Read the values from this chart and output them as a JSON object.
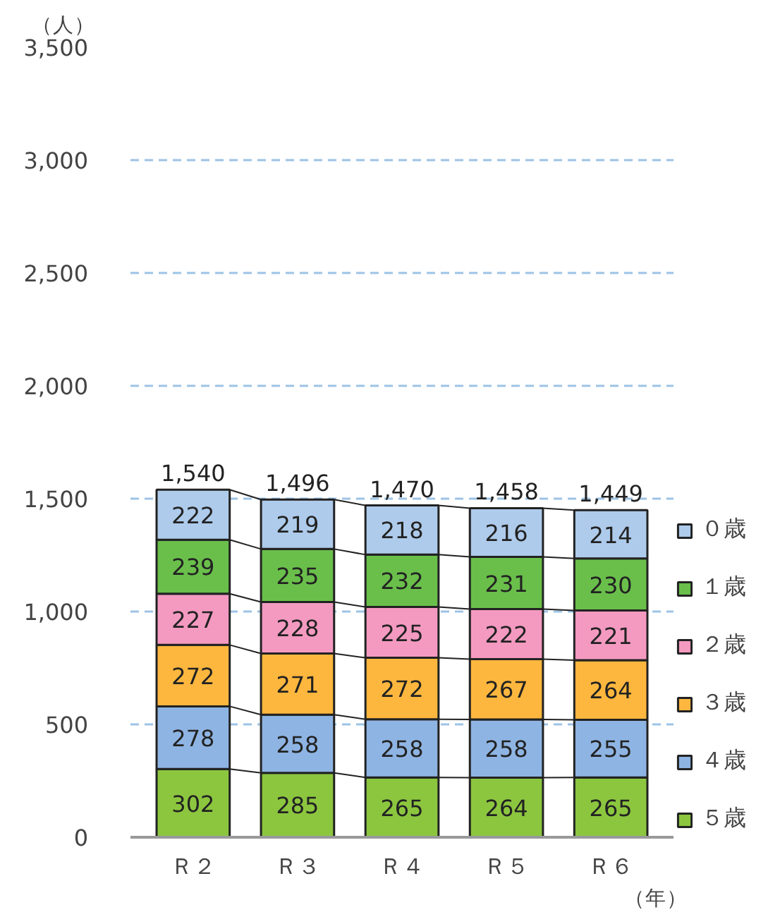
{
  "chart_data": {
    "type": "bar",
    "stacked": true,
    "ylabel": "（人）",
    "xlabel": "（年）",
    "categories": [
      "Ｒ２",
      "Ｒ３",
      "Ｒ４",
      "Ｒ５",
      "Ｒ６"
    ],
    "series": [
      {
        "name": "５歳",
        "color": "#8cc63f",
        "values": [
          302,
          285,
          265,
          264,
          265
        ]
      },
      {
        "name": "４歳",
        "color": "#8eb4e3",
        "values": [
          278,
          258,
          258,
          258,
          255
        ]
      },
      {
        "name": "３歳",
        "color": "#fdb73e",
        "values": [
          272,
          271,
          272,
          267,
          264
        ]
      },
      {
        "name": "２歳",
        "color": "#f49ac1",
        "values": [
          227,
          228,
          225,
          222,
          221
        ]
      },
      {
        "name": "１歳",
        "color": "#6abf4b",
        "values": [
          239,
          235,
          232,
          231,
          230
        ]
      },
      {
        "name": "０歳",
        "color": "#aecbeb",
        "values": [
          222,
          219,
          218,
          216,
          214
        ]
      }
    ],
    "totals": [
      "1,540",
      "1,496",
      "1,470",
      "1,458",
      "1,449"
    ],
    "data_labels": true,
    "ylim": [
      0,
      3500
    ],
    "yticks": [
      0,
      500,
      {
        "value": 1000,
        "label": "1,000"
      },
      {
        "value": 1500,
        "label": "1,500"
      },
      {
        "value": 2000,
        "label": "2,000"
      },
      {
        "value": 2500,
        "label": "2,500"
      },
      {
        "value": 3000,
        "label": "3,000"
      },
      {
        "value": 3500,
        "label": "3,500"
      }
    ],
    "grid": "y",
    "legend": "right"
  }
}
